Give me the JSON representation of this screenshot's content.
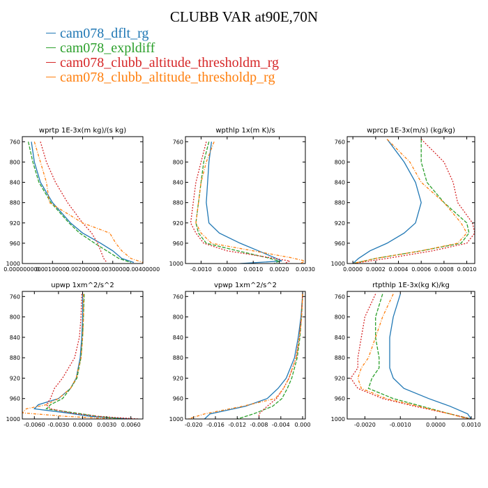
{
  "title": "CLUBB VAR at90E,70N",
  "legend": [
    {
      "label": "cam078_dflt_rg",
      "color": "#1f77b4"
    },
    {
      "label": "cam078_expldiff",
      "color": "#2ca02c"
    },
    {
      "label": "cam078_clubb_altitude_thresholdm_rg",
      "color": "#d62728"
    },
    {
      "label": "cam078_clubb_altitude_thresholdp_rg",
      "color": "#ff7f0e"
    }
  ],
  "chart_data": [
    {
      "type": "line",
      "title": "wprtp  1E-3x(m kg)/(s kg)",
      "xlim": [
        0,
        0.004
      ],
      "ylim": [
        1000,
        750
      ],
      "y_reversed": true,
      "xticks": [
        0,
        0.001,
        0.002,
        0.003,
        0.004
      ],
      "xtick_labels": [
        "0.000000000",
        "0.00100000",
        "0.00200000",
        "0.00300000",
        "0.00400000"
      ],
      "yticks": [
        760,
        800,
        840,
        880,
        920,
        960,
        1000
      ],
      "y": [
        760,
        800,
        840,
        880,
        920,
        940,
        960,
        975,
        990,
        998
      ],
      "series": [
        {
          "values": [
            0.0003,
            0.0004,
            0.0006,
            0.001,
            0.0016,
            0.002,
            0.0026,
            0.003,
            0.0033,
            0.0037
          ]
        },
        {
          "values": [
            0.0002,
            0.00035,
            0.00055,
            0.00095,
            0.00155,
            0.0019,
            0.0024,
            0.0028,
            0.0032,
            0.0036
          ]
        },
        {
          "values": [
            0.0006,
            0.0008,
            0.0011,
            0.0015,
            0.002,
            0.0023,
            0.0025,
            0.0026,
            0.0027,
            0.0028
          ]
        },
        {
          "values": [
            0.0004,
            0.0006,
            0.0008,
            0.0009,
            0.002,
            0.0029,
            0.0031,
            0.0033,
            0.0036,
            0.004
          ]
        }
      ]
    },
    {
      "type": "line",
      "title": "wpthlp  1x(m K)/s",
      "xlim": [
        -0.0016,
        0.003
      ],
      "ylim": [
        1000,
        750
      ],
      "y_reversed": true,
      "xticks": [
        -0.001,
        0,
        0.001,
        0.002,
        0.003
      ],
      "xtick_labels": [
        "-0.0010",
        "0.0000",
        "0.0010",
        "0.0020",
        "0.0030"
      ],
      "yticks": [
        760,
        800,
        840,
        880,
        920,
        960,
        1000
      ],
      "y": [
        760,
        800,
        840,
        880,
        920,
        940,
        960,
        975,
        988,
        995,
        1000
      ],
      "series": [
        {
          "values": [
            -0.0006,
            -0.0007,
            -0.00075,
            -0.0008,
            -0.0007,
            -0.0003,
            0.0005,
            0.0012,
            0.0018,
            0.0021,
            0.0005
          ]
        },
        {
          "values": [
            -0.0007,
            -0.0009,
            -0.001,
            -0.0011,
            -0.0012,
            -0.0011,
            -0.0008,
            0.0004,
            0.0015,
            0.002,
            0.0018
          ]
        },
        {
          "values": [
            -0.0008,
            -0.001,
            -0.0012,
            -0.0013,
            -0.0014,
            -0.0012,
            -0.0009,
            0.0,
            0.0016,
            0.0024,
            0.0022
          ]
        },
        {
          "values": [
            -0.0005,
            -0.0008,
            -0.001,
            -0.0011,
            -0.0012,
            -0.001,
            -0.0006,
            0.001,
            0.0024,
            0.003,
            0.0028
          ]
        }
      ]
    },
    {
      "type": "line",
      "title": "wprcp  1E-3x(m/s) (kg/kg)",
      "xlim": [
        -5e-05,
        0.00107
      ],
      "ylim": [
        1000,
        750
      ],
      "y_reversed": true,
      "xticks": [
        0,
        0.0002,
        0.0004,
        0.0006,
        0.0008,
        0.001
      ],
      "xtick_labels": [
        "0.0000",
        "0.0002",
        "0.0004",
        "0.0006",
        "0.0008",
        "0.0010"
      ],
      "yticks": [
        760,
        800,
        840,
        880,
        920,
        960,
        1000
      ],
      "y": [
        755,
        800,
        840,
        880,
        920,
        940,
        960,
        975,
        990,
        1000
      ],
      "series": [
        {
          "values": [
            0.0003,
            0.00045,
            0.00055,
            0.0006,
            0.00055,
            0.00045,
            0.0003,
            0.00015,
            5e-05,
            0.0
          ],
          "note_y": [
            755,
            790,
            840,
            880,
            920,
            940,
            960,
            975,
            990,
            1000
          ]
        },
        {
          "values": [
            0.0006,
            0.0006,
            0.00065,
            0.0008,
            0.001,
            0.00102,
            0.00095,
            0.0006,
            0.0002,
            0.0
          ]
        },
        {
          "values": [
            0.0006,
            0.0008,
            0.00088,
            0.00092,
            0.00105,
            0.00107,
            0.001,
            0.0007,
            0.0003,
            0.0
          ]
        },
        {
          "values": [
            0.0003,
            0.0005,
            0.0006,
            0.0008,
            0.00095,
            0.001,
            0.00092,
            0.0006,
            0.0002,
            0.0
          ]
        }
      ]
    },
    {
      "type": "line",
      "title": "upwp  1xm^2/s^2",
      "xlim": [
        -0.0075,
        0.0075
      ],
      "ylim": [
        1000,
        750
      ],
      "y_reversed": true,
      "xticks": [
        -0.006,
        -0.003,
        0,
        0.003,
        0.006
      ],
      "xtick_labels": [
        "-0.0060",
        "-0.0030",
        "0.0000",
        "0.0030",
        "0.0060"
      ],
      "yticks": [
        760,
        800,
        840,
        880,
        920,
        960,
        1000
      ],
      "y": [
        755,
        800,
        840,
        880,
        920,
        940,
        960,
        972,
        980,
        988,
        995,
        1000
      ],
      "series": [
        {
          "values": [
            0.0,
            0.0,
            -0.0001,
            -0.0003,
            -0.0008,
            -0.0015,
            -0.003,
            -0.0055,
            -0.006,
            -0.002,
            0.001,
            0.006
          ]
        },
        {
          "values": [
            0.0002,
            0.0001,
            0.0,
            -0.0002,
            -0.0007,
            -0.0015,
            -0.0025,
            -0.004,
            -0.0045,
            -0.001,
            0.002,
            0.005
          ]
        },
        {
          "values": [
            -0.0001,
            -0.0002,
            -0.0004,
            -0.001,
            -0.0025,
            -0.0035,
            -0.004,
            -0.0045,
            -0.004,
            -0.0015,
            0.002,
            0.007
          ]
        },
        {
          "values": [
            0.0001,
            0.0001,
            0.0,
            -0.0002,
            -0.0008,
            -0.0015,
            -0.003,
            -0.0045,
            -0.007,
            -0.0075,
            -0.002,
            0.004
          ]
        }
      ]
    },
    {
      "type": "line",
      "title": "vpwp  1xm^2/s^2",
      "xlim": [
        -0.0215,
        0.0005
      ],
      "ylim": [
        1000,
        750
      ],
      "y_reversed": true,
      "xticks": [
        -0.02,
        -0.016,
        -0.012,
        -0.008,
        -0.004,
        0
      ],
      "xtick_labels": [
        "-0.020",
        "-0.016",
        "-0.012",
        "-0.008",
        "-0.004",
        "0.000"
      ],
      "yticks": [
        760,
        800,
        840,
        880,
        920,
        960,
        1000
      ],
      "y": [
        755,
        800,
        840,
        880,
        920,
        940,
        960,
        975,
        990,
        1000
      ],
      "series": [
        {
          "values": [
            0.0,
            -0.0003,
            -0.0008,
            -0.0015,
            -0.003,
            -0.0045,
            -0.0065,
            -0.0105,
            -0.017,
            -0.018
          ]
        },
        {
          "values": [
            0.0,
            -0.0002,
            -0.0005,
            -0.001,
            -0.002,
            -0.0028,
            -0.0038,
            -0.0055,
            -0.009,
            -0.012
          ]
        },
        {
          "values": [
            0.0,
            -0.0002,
            -0.0006,
            -0.0012,
            -0.0025,
            -0.0035,
            -0.0048,
            -0.0065,
            -0.008,
            -0.008
          ]
        },
        {
          "values": [
            0.0,
            -0.0002,
            -0.0006,
            -0.0012,
            -0.0025,
            -0.0035,
            -0.005,
            -0.011,
            -0.018,
            -0.021
          ]
        }
      ]
    },
    {
      "type": "line",
      "title": "rtpthlp  1E-3x(kg K)/kg",
      "xlim": [
        -0.0025,
        0.0011
      ],
      "ylim": [
        1000,
        750
      ],
      "y_reversed": true,
      "xticks": [
        -0.002,
        -0.001,
        0,
        0.001
      ],
      "xtick_labels": [
        "-0.0020",
        "-0.0010",
        "0.0000",
        "0.0010"
      ],
      "yticks": [
        760,
        800,
        840,
        880,
        920,
        960,
        1000
      ],
      "y": [
        755,
        800,
        840,
        880,
        900,
        920,
        940,
        960,
        975,
        990,
        1000
      ],
      "series": [
        {
          "values": [
            -0.001,
            -0.0012,
            -0.0013,
            -0.0013,
            -0.0013,
            -0.0012,
            -0.0009,
            -0.0002,
            0.0004,
            0.0009,
            0.001
          ]
        },
        {
          "values": [
            -0.0015,
            -0.0017,
            -0.0017,
            -0.0016,
            -0.0016,
            -0.0018,
            -0.0019,
            -0.0012,
            -0.0004,
            0.0004,
            0.001
          ]
        },
        {
          "values": [
            -0.0017,
            -0.002,
            -0.0021,
            -0.0022,
            -0.0022,
            -0.0024,
            -0.0022,
            -0.0015,
            -0.0006,
            0.0004,
            0.001
          ]
        },
        {
          "values": [
            -0.0012,
            -0.0015,
            -0.0017,
            -0.0019,
            -0.0021,
            -0.0022,
            -0.0021,
            -0.0014,
            -0.0005,
            0.0004,
            0.0009
          ]
        }
      ]
    }
  ]
}
